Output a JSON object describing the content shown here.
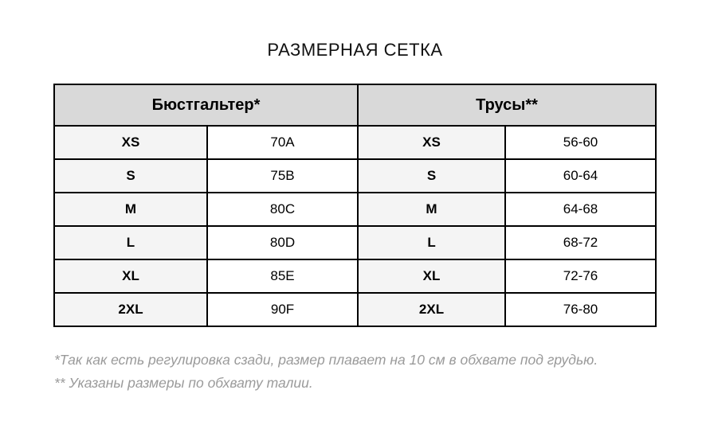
{
  "page": {
    "title": "РАЗМЕРНАЯ СЕТКА"
  },
  "table": {
    "sections": [
      {
        "header": "Бюстгальтер*",
        "rows": [
          {
            "size": "XS",
            "value": "70A"
          },
          {
            "size": "S",
            "value": "75B"
          },
          {
            "size": "M",
            "value": "80C"
          },
          {
            "size": "L",
            "value": "80D"
          },
          {
            "size": "XL",
            "value": "85E"
          },
          {
            "size": "2XL",
            "value": "90F"
          }
        ]
      },
      {
        "header": "Трусы**",
        "rows": [
          {
            "size": "XS",
            "value": "56-60"
          },
          {
            "size": "S",
            "value": "60-64"
          },
          {
            "size": "M",
            "value": "64-68"
          },
          {
            "size": "L",
            "value": "68-72"
          },
          {
            "size": "XL",
            "value": "72-76"
          },
          {
            "size": "2XL",
            "value": "76-80"
          }
        ]
      }
    ]
  },
  "footnotes": [
    "*Так как есть регулировка сзади, размер плавает на 10 см в обхвате под грудью.",
    "** Указаны размеры по обхвату талии."
  ],
  "colors": {
    "header_bg": "#d9d9d9",
    "label_bg": "#f4f4f4",
    "border": "#000000",
    "footnote": "#9a9a9a"
  }
}
